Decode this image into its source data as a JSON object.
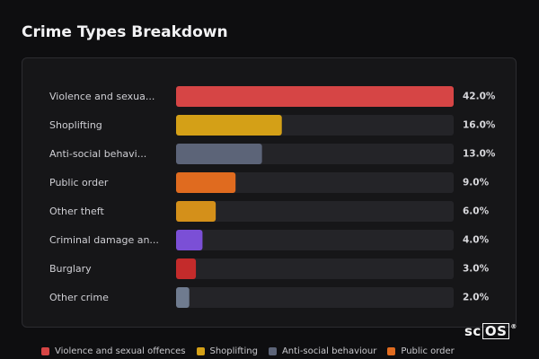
{
  "header": {
    "title": "Crime Types Breakdown"
  },
  "logo": {
    "text_plain": "sc",
    "text_boxed": "OS",
    "mark": "®"
  },
  "chart_data": {
    "type": "bar",
    "orientation": "horizontal",
    "unit": "%",
    "xlim": [
      0,
      42
    ],
    "categories": [
      "Violence and sexua...",
      "Shoplifting",
      "Anti-social behavi...",
      "Public order",
      "Other theft",
      "Criminal damage an...",
      "Burglary",
      "Other crime"
    ],
    "values": [
      42.0,
      16.0,
      13.0,
      9.0,
      6.0,
      4.0,
      3.0,
      2.0
    ],
    "value_labels": [
      "42.0%",
      "16.0%",
      "13.0%",
      "9.0%",
      "6.0%",
      "4.0%",
      "3.0%",
      "2.0%"
    ],
    "colors": [
      "#d64545",
      "#d4a017",
      "#5c6478",
      "#e06b1f",
      "#d4901a",
      "#7b4fd6",
      "#c42b2b",
      "#6f7b8f"
    ],
    "legend_placement": "bottom",
    "legend": [
      {
        "label": "Violence and sexual offences",
        "color": "#d64545"
      },
      {
        "label": "Shoplifting",
        "color": "#d4a017"
      },
      {
        "label": "Anti-social behaviour",
        "color": "#5c6478"
      },
      {
        "label": "Public order",
        "color": "#e06b1f"
      }
    ]
  }
}
